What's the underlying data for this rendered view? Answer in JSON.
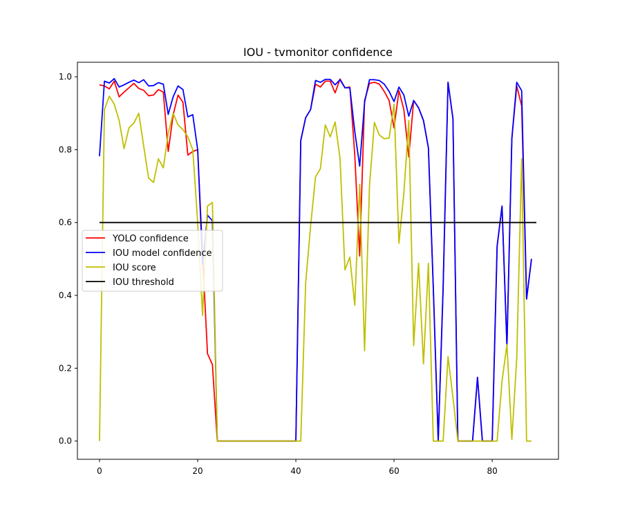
{
  "chart_data": {
    "type": "line",
    "title": "IOU - tvmonitor confidence",
    "xlabel": "",
    "ylabel": "",
    "xlim": [
      -4.5,
      93.5
    ],
    "ylim": [
      -0.05,
      1.04
    ],
    "xticks": [
      0,
      20,
      40,
      60,
      80
    ],
    "yticks": [
      0.0,
      0.2,
      0.4,
      0.6,
      0.8,
      1.0
    ],
    "xtick_labels": [
      "0",
      "20",
      "40",
      "60",
      "80"
    ],
    "ytick_labels": [
      "0.0",
      "0.2",
      "0.4",
      "0.6",
      "0.8",
      "1.0"
    ],
    "legend_position": "center-left",
    "grid": false,
    "series": [
      {
        "name": "YOLO confidence",
        "color": "#ff0000",
        "points": [
          [
            0,
            0.978
          ],
          [
            1,
            0.975
          ],
          [
            2,
            0.967
          ],
          [
            3,
            0.988
          ],
          [
            4,
            0.945
          ],
          [
            5,
            0.958
          ],
          [
            6,
            0.97
          ],
          [
            7,
            0.982
          ],
          [
            8,
            0.968
          ],
          [
            9,
            0.963
          ],
          [
            10,
            0.948
          ],
          [
            11,
            0.95
          ],
          [
            12,
            0.965
          ],
          [
            13,
            0.958
          ],
          [
            14,
            0.795
          ],
          [
            15,
            0.895
          ],
          [
            16,
            0.95
          ],
          [
            17,
            0.93
          ],
          [
            18,
            0.785
          ],
          [
            19,
            0.795
          ],
          [
            20,
            0.8
          ],
          [
            21,
            0.51
          ],
          [
            22,
            0.24
          ],
          [
            23,
            0.21
          ],
          [
            24,
            0.0
          ],
          [
            40,
            0.0
          ],
          [
            41,
            0.825
          ],
          [
            42,
            0.888
          ],
          [
            43,
            0.91
          ],
          [
            44,
            0.98
          ],
          [
            45,
            0.972
          ],
          [
            46,
            0.988
          ],
          [
            47,
            0.988
          ],
          [
            48,
            0.956
          ],
          [
            49,
            0.994
          ],
          [
            50,
            0.97
          ],
          [
            51,
            0.972
          ],
          [
            52,
            0.786
          ],
          [
            53,
            0.508
          ],
          [
            54,
            0.935
          ],
          [
            55,
            0.982
          ],
          [
            56,
            0.985
          ],
          [
            57,
            0.98
          ],
          [
            58,
            0.96
          ],
          [
            59,
            0.935
          ],
          [
            60,
            0.86
          ],
          [
            61,
            0.962
          ],
          [
            62,
            0.91
          ],
          [
            63,
            0.78
          ],
          [
            64,
            0.935
          ],
          [
            65,
            0.915
          ],
          [
            66,
            0.88
          ],
          [
            67,
            0.805
          ],
          [
            68,
            0.42
          ],
          [
            69,
            0.0
          ],
          [
            70,
            0.42
          ],
          [
            71,
            0.985
          ],
          [
            72,
            0.885
          ],
          [
            73,
            0.0
          ],
          [
            76,
            0.0
          ],
          [
            77,
            0.175
          ],
          [
            78,
            0.0
          ],
          [
            80,
            0.0
          ],
          [
            81,
            0.535
          ],
          [
            82,
            0.645
          ],
          [
            83,
            0.26
          ],
          [
            84,
            0.83
          ],
          [
            85,
            0.975
          ],
          [
            86,
            0.92
          ],
          [
            87,
            0.39
          ],
          [
            88,
            0.5
          ]
        ]
      },
      {
        "name": "IOU model confidence",
        "color": "#0000ff",
        "points": [
          [
            0,
            0.782
          ],
          [
            1,
            0.988
          ],
          [
            2,
            0.983
          ],
          [
            3,
            0.995
          ],
          [
            4,
            0.972
          ],
          [
            5,
            0.978
          ],
          [
            6,
            0.985
          ],
          [
            7,
            0.991
          ],
          [
            8,
            0.984
          ],
          [
            9,
            0.992
          ],
          [
            10,
            0.975
          ],
          [
            11,
            0.976
          ],
          [
            12,
            0.984
          ],
          [
            13,
            0.98
          ],
          [
            14,
            0.897
          ],
          [
            15,
            0.945
          ],
          [
            16,
            0.975
          ],
          [
            17,
            0.965
          ],
          [
            18,
            0.89
          ],
          [
            19,
            0.896
          ],
          [
            20,
            0.8
          ],
          [
            21,
            0.485
          ],
          [
            22,
            0.62
          ],
          [
            23,
            0.605
          ],
          [
            24,
            0.0
          ],
          [
            40,
            0.0
          ],
          [
            41,
            0.825
          ],
          [
            42,
            0.888
          ],
          [
            43,
            0.91
          ],
          [
            44,
            0.99
          ],
          [
            45,
            0.985
          ],
          [
            46,
            0.993
          ],
          [
            47,
            0.993
          ],
          [
            48,
            0.978
          ],
          [
            49,
            0.992
          ],
          [
            50,
            0.97
          ],
          [
            51,
            0.97
          ],
          [
            52,
            0.85
          ],
          [
            53,
            0.755
          ],
          [
            54,
            0.93
          ],
          [
            55,
            0.992
          ],
          [
            56,
            0.992
          ],
          [
            57,
            0.99
          ],
          [
            58,
            0.98
          ],
          [
            59,
            0.96
          ],
          [
            60,
            0.932
          ],
          [
            61,
            0.972
          ],
          [
            62,
            0.95
          ],
          [
            63,
            0.892
          ],
          [
            64,
            0.935
          ],
          [
            65,
            0.915
          ],
          [
            66,
            0.88
          ],
          [
            67,
            0.805
          ],
          [
            68,
            0.42
          ],
          [
            69,
            0.0
          ],
          [
            70,
            0.42
          ],
          [
            71,
            0.985
          ],
          [
            72,
            0.885
          ],
          [
            73,
            0.0
          ],
          [
            76,
            0.0
          ],
          [
            77,
            0.175
          ],
          [
            78,
            0.0
          ],
          [
            80,
            0.0
          ],
          [
            81,
            0.535
          ],
          [
            82,
            0.645
          ],
          [
            83,
            0.26
          ],
          [
            84,
            0.83
          ],
          [
            85,
            0.985
          ],
          [
            86,
            0.962
          ],
          [
            87,
            0.39
          ],
          [
            88,
            0.5
          ]
        ]
      },
      {
        "name": "IOU score",
        "color": "#bfbf00",
        "points": [
          [
            0,
            0.0
          ],
          [
            1,
            0.91
          ],
          [
            2,
            0.947
          ],
          [
            3,
            0.925
          ],
          [
            4,
            0.88
          ],
          [
            5,
            0.803
          ],
          [
            6,
            0.86
          ],
          [
            7,
            0.873
          ],
          [
            8,
            0.9
          ],
          [
            9,
            0.81
          ],
          [
            10,
            0.722
          ],
          [
            11,
            0.71
          ],
          [
            12,
            0.775
          ],
          [
            13,
            0.75
          ],
          [
            14,
            0.845
          ],
          [
            15,
            0.9
          ],
          [
            16,
            0.868
          ],
          [
            17,
            0.855
          ],
          [
            18,
            0.835
          ],
          [
            19,
            0.8
          ],
          [
            20,
            0.6
          ],
          [
            21,
            0.345
          ],
          [
            22,
            0.645
          ],
          [
            23,
            0.655
          ],
          [
            24,
            0.0
          ],
          [
            40,
            0.0
          ],
          [
            41,
            0.0
          ],
          [
            42,
            0.435
          ],
          [
            43,
            0.59
          ],
          [
            44,
            0.725
          ],
          [
            45,
            0.748
          ],
          [
            46,
            0.868
          ],
          [
            47,
            0.835
          ],
          [
            48,
            0.876
          ],
          [
            49,
            0.775
          ],
          [
            50,
            0.47
          ],
          [
            51,
            0.505
          ],
          [
            52,
            0.373
          ],
          [
            53,
            0.705
          ],
          [
            54,
            0.248
          ],
          [
            55,
            0.7
          ],
          [
            56,
            0.875
          ],
          [
            57,
            0.84
          ],
          [
            58,
            0.83
          ],
          [
            59,
            0.832
          ],
          [
            60,
            0.925
          ],
          [
            61,
            0.543
          ],
          [
            62,
            0.68
          ],
          [
            63,
            0.88
          ],
          [
            64,
            0.262
          ],
          [
            65,
            0.488
          ],
          [
            66,
            0.212
          ],
          [
            67,
            0.488
          ],
          [
            68,
            0.0
          ],
          [
            70,
            0.0
          ],
          [
            71,
            0.232
          ],
          [
            72,
            0.12
          ],
          [
            73,
            0.0
          ],
          [
            81,
            0.0
          ],
          [
            82,
            0.165
          ],
          [
            83,
            0.265
          ],
          [
            84,
            0.005
          ],
          [
            85,
            0.228
          ],
          [
            86,
            0.775
          ],
          [
            87,
            0.0
          ],
          [
            88,
            0.0
          ]
        ]
      },
      {
        "name": "IOU threshold",
        "color": "#000000",
        "points": [
          [
            0,
            0.6
          ],
          [
            89,
            0.6
          ]
        ]
      }
    ]
  }
}
